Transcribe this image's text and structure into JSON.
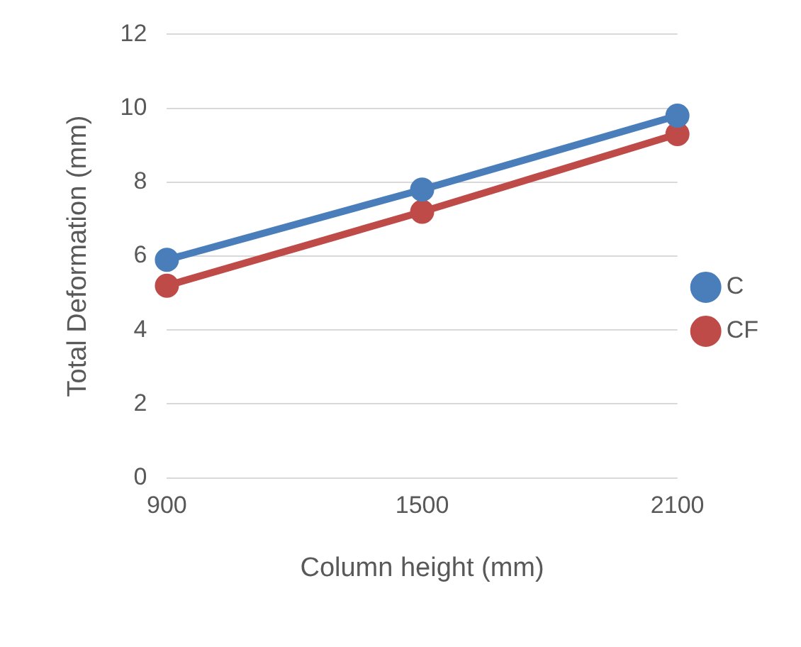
{
  "chart_data": {
    "type": "line",
    "xlabel": "Column height (mm)",
    "ylabel": "Total Deformation (mm)",
    "categories": [
      "900",
      "1500",
      "2100"
    ],
    "series": [
      {
        "name": "C",
        "color": "#4a7ebb",
        "values": [
          5.9,
          7.8,
          9.8
        ]
      },
      {
        "name": "CF",
        "color": "#be4b48",
        "values": [
          5.2,
          7.2,
          9.3
        ]
      }
    ],
    "ylim": [
      0,
      12
    ],
    "yticks": [
      0,
      2,
      4,
      6,
      8,
      10,
      12
    ],
    "grid": "y",
    "legend": "right",
    "marker": "circle",
    "line_style": "solid"
  }
}
